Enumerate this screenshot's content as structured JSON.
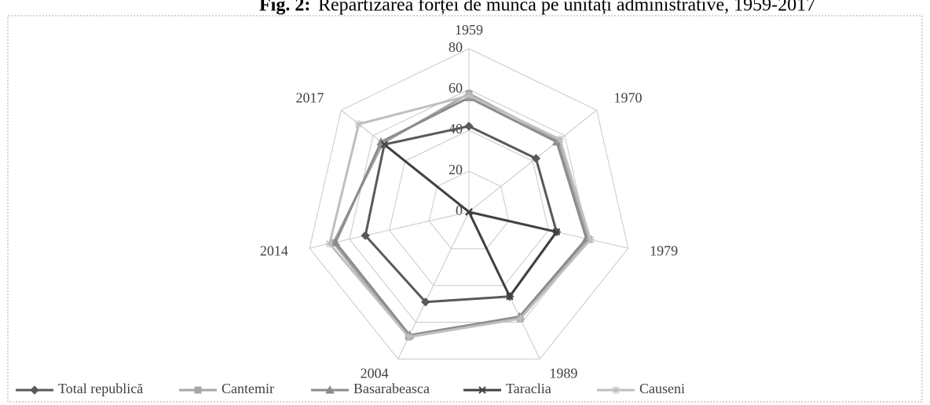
{
  "chart_data": {
    "type": "radar",
    "title_prefix": "Fig. 2:",
    "title": "Repartizarea forței de muncă pe unități administrative, 1959-2017",
    "categories": [
      "1959",
      "1970",
      "1979",
      "1989",
      "2004",
      "2014",
      "2017"
    ],
    "rlim": [
      0,
      80
    ],
    "rticks": [
      0,
      20,
      40,
      60,
      80
    ],
    "grid": true,
    "legend": "bottom",
    "series": [
      {
        "name": "Total republică",
        "color": "#595959",
        "marker": "diamond",
        "values": [
          42,
          42,
          44,
          46,
          49,
          52,
          53
        ]
      },
      {
        "name": "Cantemir",
        "color": "#a6a6a6",
        "marker": "square",
        "values": [
          58,
          56,
          60,
          58,
          68,
          68,
          54
        ]
      },
      {
        "name": "Basarabeasca",
        "color": "#8c8c8c",
        "marker": "triangle",
        "values": [
          56,
          55,
          59,
          57,
          67,
          67,
          55
        ]
      },
      {
        "name": "Taraclia",
        "color": "#404040",
        "marker": "x",
        "values": [
          0,
          0,
          44,
          46,
          0,
          0,
          53
        ]
      },
      {
        "name": "Causeni",
        "color": "#bfbfbf",
        "marker": "star",
        "values": [
          57,
          57,
          61,
          58,
          68,
          70,
          69
        ]
      }
    ]
  }
}
